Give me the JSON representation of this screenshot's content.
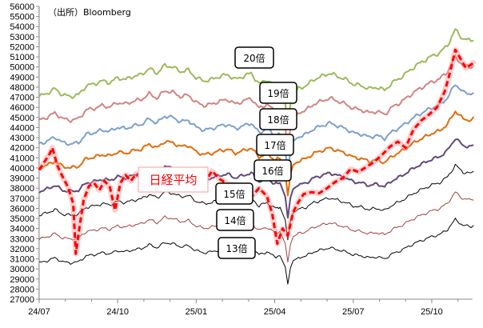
{
  "chart_data": {
    "type": "line",
    "source_note": "（出所）Bloomberg",
    "xlabel": "",
    "ylabel": "",
    "ylim": [
      27000,
      56000
    ],
    "ytick_step": 1000,
    "x_tick_labels": [
      "24/07",
      "24/10",
      "25/01",
      "25/04",
      "25/07",
      "25/10"
    ],
    "x_range_months": [
      0,
      16
    ],
    "base_multiple": 13,
    "base_series_x_months": [
      0,
      0.3,
      0.6,
      0.9,
      1.2,
      1.5,
      1.8,
      2.1,
      2.4,
      2.7,
      3.0,
      3.3,
      3.6,
      3.9,
      4.2,
      4.5,
      4.8,
      5.1,
      5.4,
      5.7,
      6.0,
      6.3,
      6.6,
      6.9,
      7.2,
      7.5,
      7.8,
      8.1,
      8.4,
      8.7,
      9.0,
      9.2,
      9.4,
      9.5,
      9.6,
      9.7,
      9.9,
      10.2,
      10.5,
      10.8,
      11.1,
      11.4,
      11.7,
      12.0,
      12.3,
      12.6,
      12.9,
      13.2,
      13.5,
      13.8,
      14.1,
      14.4,
      14.7,
      15.0,
      15.3,
      15.6,
      15.9,
      16.2,
      16.5,
      16.9
    ],
    "base_series_values": [
      30600,
      30800,
      31100,
      30700,
      30600,
      30700,
      31300,
      31400,
      31600,
      31500,
      31800,
      31700,
      31900,
      32000,
      32400,
      32100,
      32600,
      32500,
      32200,
      32300,
      31800,
      31600,
      31700,
      31900,
      32000,
      31700,
      31900,
      32100,
      31400,
      31700,
      31200,
      31300,
      30200,
      28500,
      30100,
      30800,
      31100,
      31300,
      31700,
      31900,
      32100,
      31900,
      31700,
      31400,
      31300,
      31100,
      31200,
      31000,
      31500,
      31800,
      32200,
      32600,
      32900,
      33200,
      33400,
      33900,
      34900,
      34300,
      34200,
      34700
    ],
    "series": [
      {
        "name": "20倍",
        "multiple": 20,
        "color": "#9bbb59"
      },
      {
        "name": "19倍",
        "multiple": 19,
        "color": "#c0504d",
        "opacity": 0.7
      },
      {
        "name": "18倍",
        "multiple": 18,
        "color": "#4f81bd",
        "opacity": 0.75
      },
      {
        "name": "17倍",
        "multiple": 17,
        "color": "#e36c09"
      },
      {
        "name": "16倍",
        "multiple": 16,
        "color": "#604a7b"
      },
      {
        "name": "15倍",
        "multiple": 15,
        "color": "#000000"
      },
      {
        "name": "14倍",
        "multiple": 14,
        "color": "#a0413d"
      },
      {
        "name": "13倍",
        "multiple": 13,
        "color": "#000000"
      }
    ],
    "nikkei": {
      "name": "日経平均",
      "color": "#ff0000",
      "x_months": [
        0,
        0.2,
        0.4,
        0.5,
        0.7,
        0.9,
        1.1,
        1.3,
        1.4,
        1.55,
        1.7,
        1.9,
        2.1,
        2.3,
        2.5,
        2.7,
        2.9,
        3.1,
        3.3,
        3.5,
        3.7,
        3.9,
        4.1,
        4.3,
        4.5,
        4.7,
        4.9,
        5.1,
        5.3,
        5.5,
        5.7,
        5.9,
        6.1,
        6.3,
        6.6,
        6.9,
        7.2,
        7.5,
        7.8,
        8.1,
        8.4,
        8.7,
        8.9,
        9.1,
        9.3,
        9.5,
        9.7,
        9.9,
        10.1,
        10.4,
        10.7,
        11.0,
        11.3,
        11.6,
        11.9,
        12.2,
        12.5,
        12.8,
        13.1,
        13.4,
        13.7,
        14.0,
        14.3,
        14.6,
        14.9,
        15.2,
        15.5,
        15.7,
        15.9,
        16.1,
        16.3,
        16.6,
        16.9
      ],
      "values": [
        39800,
        40600,
        41400,
        42000,
        40200,
        39100,
        38100,
        36500,
        31500,
        34300,
        36800,
        38200,
        38500,
        37800,
        38700,
        38100,
        35800,
        38500,
        39300,
        38700,
        39400,
        39200,
        38800,
        39500,
        39600,
        38900,
        39900,
        39100,
        39300,
        38500,
        38900,
        39200,
        38700,
        38400,
        39700,
        38900,
        38400,
        38300,
        37700,
        37100,
        38000,
        37200,
        35500,
        32500,
        34000,
        33300,
        35600,
        36600,
        37400,
        37600,
        37500,
        38000,
        38600,
        39000,
        39900,
        39600,
        40100,
        40600,
        41300,
        42100,
        42600,
        42000,
        43800,
        44700,
        45300,
        46000,
        47600,
        49500,
        51700,
        50800,
        49900,
        50400,
        50300
      ]
    }
  }
}
